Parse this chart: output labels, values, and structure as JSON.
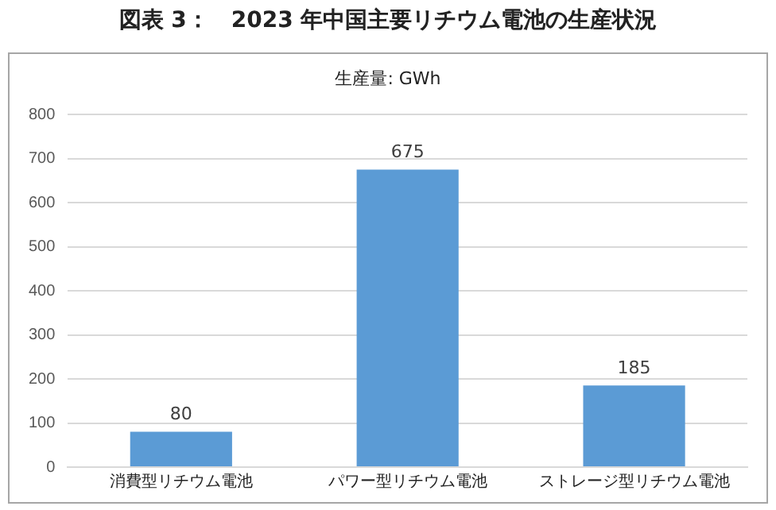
{
  "chart_data": {
    "type": "bar",
    "title": "図表 3：　2023 年中国主要リチウム電池の生産状況",
    "annotations": [
      "生産量: GWh"
    ],
    "categories": [
      "消費型リチウム電池",
      "パワー型リチウム電池",
      "ストレージ型リチウム電池"
    ],
    "values": [
      80,
      675,
      185
    ],
    "color": "#5b9bd5",
    "ylim": [
      0,
      800
    ],
    "yticks": [
      0,
      100,
      200,
      300,
      400,
      500,
      600,
      700,
      800
    ],
    "grid": "y",
    "data_labels": true,
    "legend": false
  }
}
